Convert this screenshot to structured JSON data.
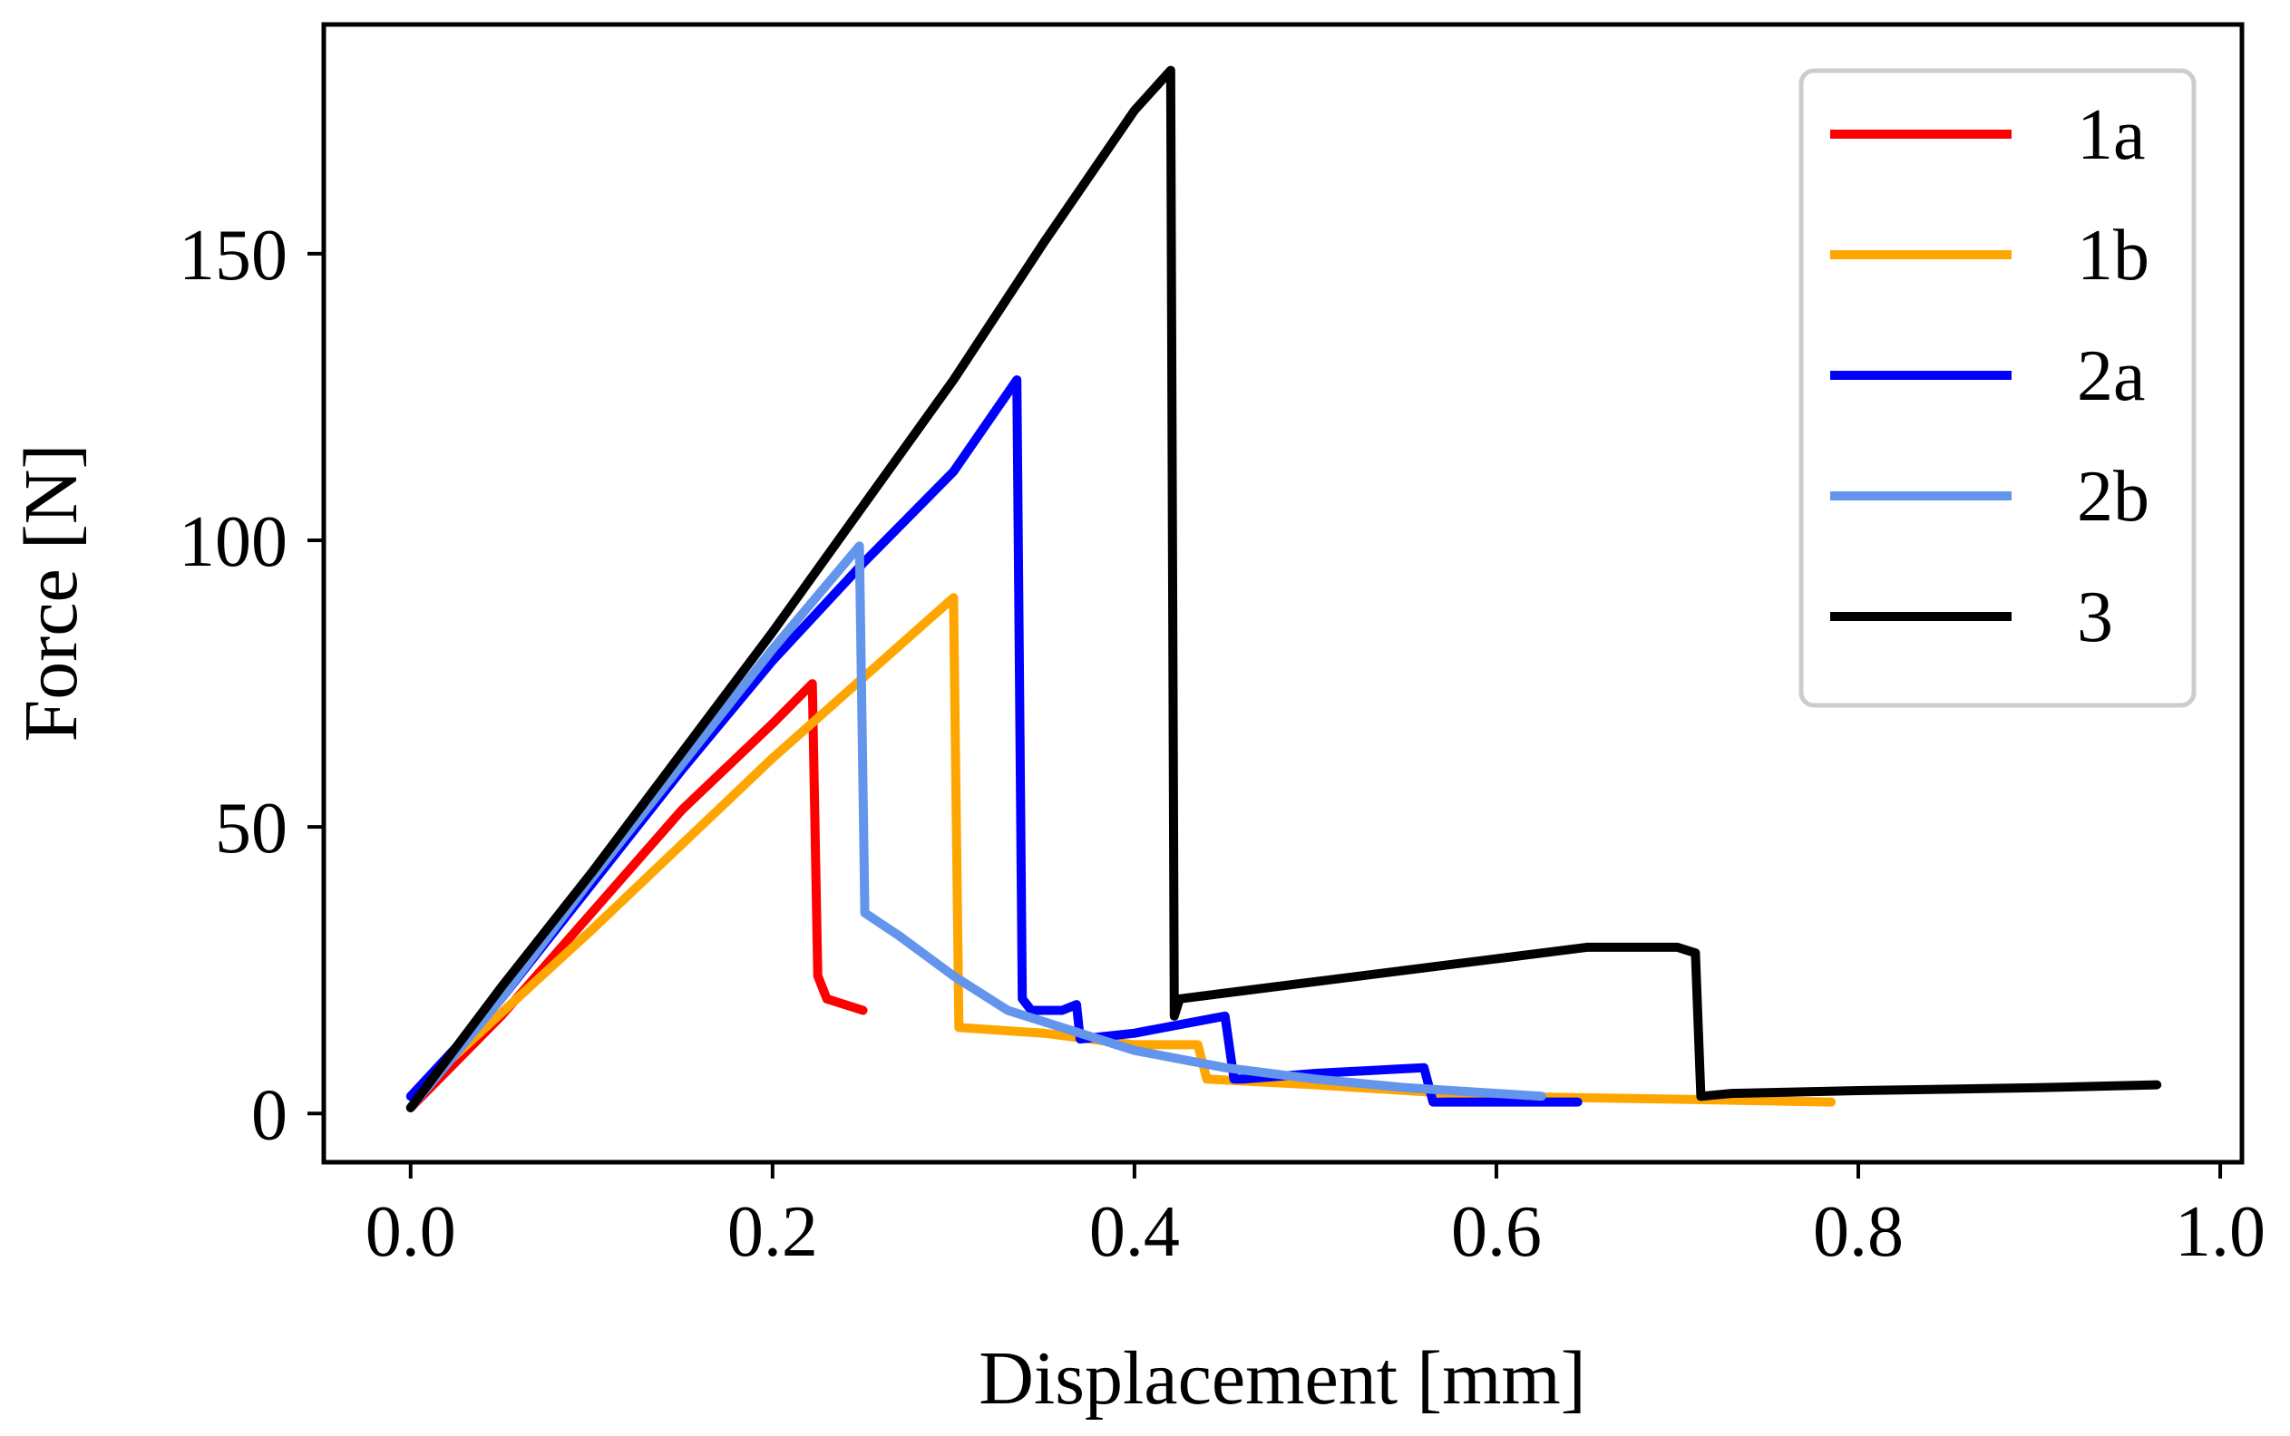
{
  "chart_data": {
    "type": "line",
    "title": "",
    "xlabel": "Displacement [mm]",
    "ylabel": "Force [N]",
    "xlim": [
      -0.048,
      1.012
    ],
    "ylim": [
      -8.5,
      190
    ],
    "xticks": [
      0.0,
      0.2,
      0.4,
      0.6,
      0.8,
      1.0
    ],
    "xtick_labels": [
      "0.0",
      "0.2",
      "0.4",
      "0.6",
      "0.8",
      "1.0"
    ],
    "yticks": [
      0,
      50,
      100,
      150
    ],
    "ytick_labels": [
      "0",
      "50",
      "100",
      "150"
    ],
    "grid": false,
    "legend_position": "top-right",
    "series": [
      {
        "name": "1a",
        "color": "#ff0000",
        "x": [
          0.0,
          0.05,
          0.1,
          0.15,
          0.2,
          0.222,
          0.225,
          0.23,
          0.24,
          0.25
        ],
        "y": [
          1,
          17,
          35,
          53,
          68,
          75,
          24,
          20,
          19,
          18
        ]
      },
      {
        "name": "1b",
        "color": "#ffa500",
        "x": [
          0.0,
          0.1,
          0.2,
          0.3,
          0.303,
          0.35,
          0.4,
          0.435,
          0.44,
          0.5,
          0.6,
          0.7,
          0.785
        ],
        "y": [
          3,
          32,
          62,
          90,
          15,
          14,
          12,
          12,
          6,
          5,
          3,
          2.5,
          2
        ]
      },
      {
        "name": "2a",
        "color": "#0000ff",
        "x": [
          0.0,
          0.05,
          0.1,
          0.15,
          0.2,
          0.25,
          0.3,
          0.335,
          0.338,
          0.343,
          0.36,
          0.368,
          0.37,
          0.4,
          0.45,
          0.455,
          0.46,
          0.5,
          0.56,
          0.565,
          0.6,
          0.645
        ],
        "y": [
          3,
          20,
          40,
          60,
          79,
          96,
          112,
          128,
          20,
          18,
          18,
          19,
          13,
          14,
          17,
          6,
          6,
          7,
          8,
          2,
          2,
          2
        ]
      },
      {
        "name": "2b",
        "color": "#6495ed",
        "x": [
          0.0,
          0.05,
          0.1,
          0.15,
          0.2,
          0.248,
          0.251,
          0.27,
          0.3,
          0.33,
          0.36,
          0.4,
          0.45,
          0.5,
          0.55,
          0.6,
          0.625
        ],
        "y": [
          1,
          20,
          41,
          61,
          81,
          99,
          35,
          31,
          24,
          18,
          15,
          11,
          8,
          6,
          4.5,
          3.5,
          3
        ]
      },
      {
        "name": "3",
        "color": "#000000",
        "x": [
          0.0,
          0.05,
          0.1,
          0.15,
          0.2,
          0.25,
          0.3,
          0.35,
          0.4,
          0.42,
          0.422,
          0.425,
          0.5,
          0.6,
          0.65,
          0.7,
          0.71,
          0.713,
          0.73,
          0.8,
          0.9,
          0.965
        ],
        "y": [
          1,
          22,
          42,
          63,
          84,
          106,
          128,
          152,
          175,
          182,
          17,
          20,
          23,
          27,
          29,
          29,
          28,
          3,
          3.5,
          4,
          4.5,
          5
        ]
      }
    ]
  }
}
